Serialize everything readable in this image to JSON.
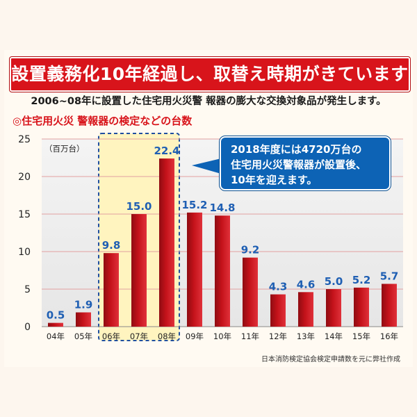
{
  "headline": "設置義務化10年経過し、取替え時期がきています",
  "subheadline": "2006~08年に設置した住宅用火災警 報器の膨大な交換対象品が発生します。",
  "callout": {
    "line1": "2018年度には4720万台の",
    "line2": "住宅用火災警報器が設置後、",
    "line3": "10年を迎えます。"
  },
  "source": "日本消防検定協会検定申請数を元に弊社作成",
  "colors": {
    "bar": "#c4121a",
    "label": "#1f5fb3",
    "banner": "#d8141b",
    "callout": "#0d63b5",
    "highlight": "#fff4bf"
  },
  "chart_data": {
    "type": "bar",
    "title": "◎住宅用火災 警報器の検定などの台数",
    "ylabel": "（百万台）",
    "categories": [
      "04年",
      "05年",
      "06年",
      "07年",
      "08年",
      "09年",
      "10年",
      "11年",
      "12年",
      "13年",
      "14年",
      "15年",
      "16年"
    ],
    "values": [
      0.5,
      1.9,
      9.8,
      15.0,
      22.4,
      15.2,
      14.8,
      9.2,
      4.3,
      4.6,
      5.0,
      5.2,
      5.7
    ],
    "value_labels": [
      "0.5",
      "1.9",
      "9.8",
      "15.0",
      "22.4",
      "15.2",
      "14.8",
      "9.2",
      "4.3",
      "4.6",
      "5.0",
      "5.2",
      "5.7"
    ],
    "ylim": [
      0,
      25
    ],
    "yticks": [
      0,
      5,
      10,
      15,
      20,
      25
    ],
    "highlighted_categories": [
      "06年",
      "07年",
      "08年"
    ]
  }
}
